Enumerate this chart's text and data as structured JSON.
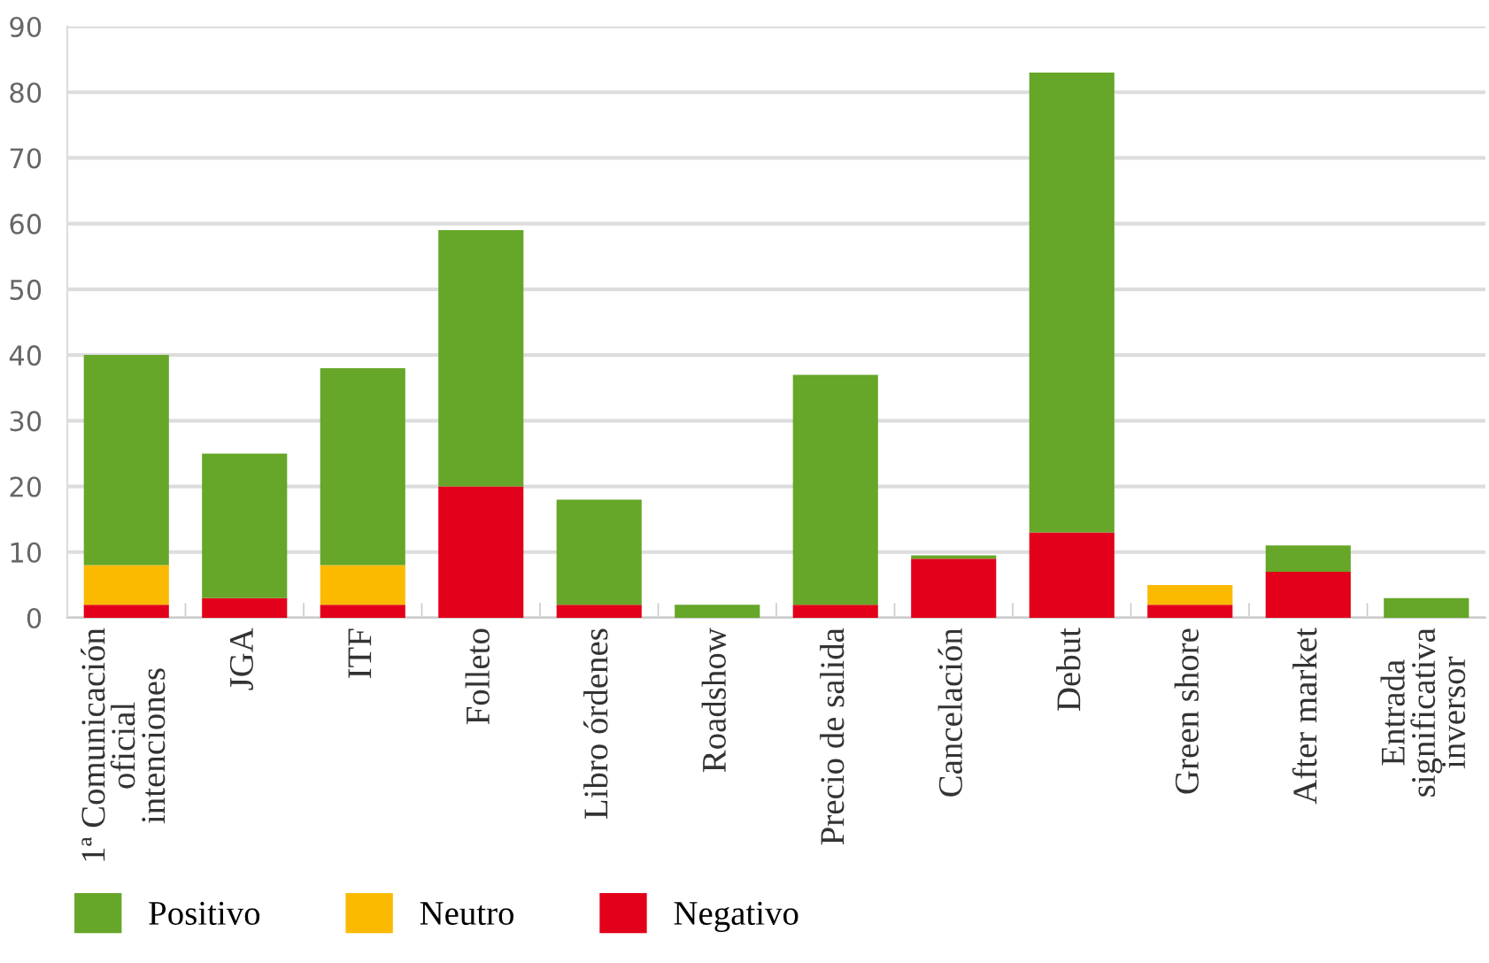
{
  "chart_data": {
    "type": "bar",
    "stacked": true,
    "categories": [
      "1ª Comunicación\noficial\nintenciones",
      "JGA",
      "ITF",
      "Folleto",
      "Libro órdenes",
      "Roadshow",
      "Precio de salida",
      "Cancelación",
      "Debut",
      "Green shore",
      "After market",
      "Entrada\nsignificativa\ninversor"
    ],
    "series": [
      {
        "name": "Negativo",
        "color": "#e2001a",
        "values": [
          2,
          3,
          2,
          20,
          2,
          0,
          2,
          9,
          13,
          2,
          7,
          0
        ]
      },
      {
        "name": "Neutro",
        "color": "#fbba00",
        "values": [
          6,
          0,
          6,
          0,
          0,
          0,
          0,
          0,
          0,
          3,
          0,
          0
        ]
      },
      {
        "name": "Positivo",
        "color": "#66a628",
        "values": [
          32,
          22,
          30,
          39,
          16,
          2,
          35,
          0.5,
          70,
          0,
          4,
          3
        ]
      }
    ],
    "ylim": [
      0,
      90
    ],
    "yticks": [
      0,
      10,
      20,
      30,
      40,
      50,
      60,
      70,
      80,
      90
    ],
    "grid": "y",
    "legend": "bottom left"
  }
}
